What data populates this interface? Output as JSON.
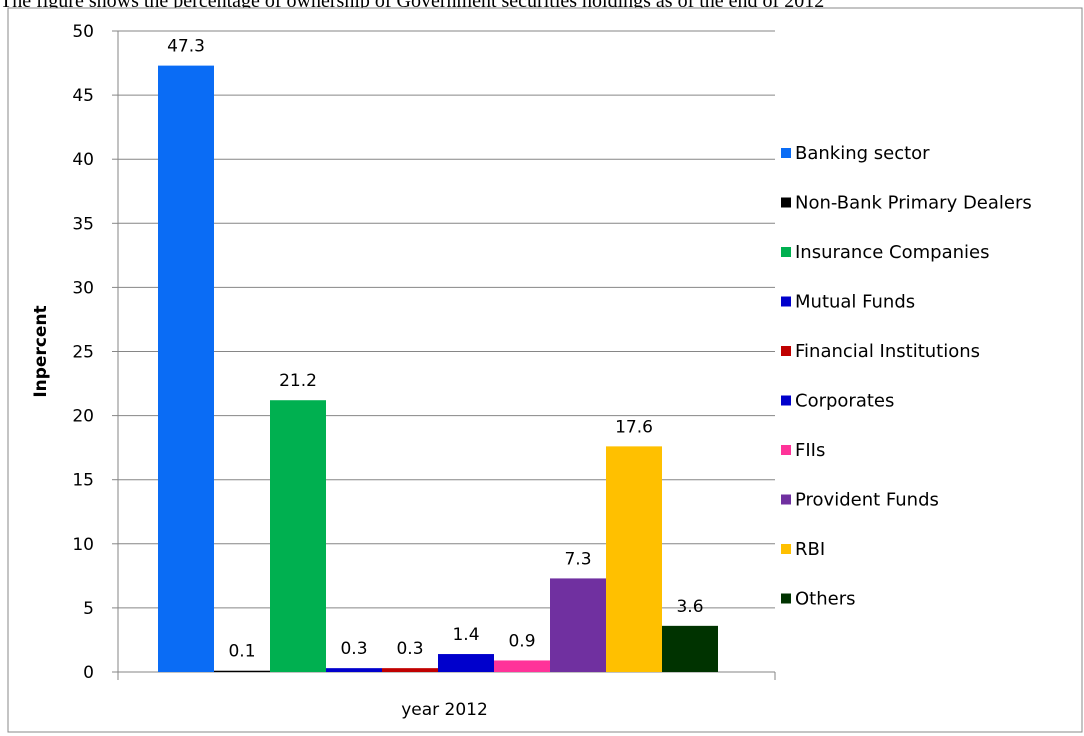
{
  "page": {
    "top_text": "The figure shows the percentage of ownership of Government securities holdings as of the end of 2012"
  },
  "chart_data": {
    "type": "bar",
    "categories": [
      "year 2012"
    ],
    "xlabel": "year 2012",
    "ylabel": "Inpercent",
    "ylim": [
      0,
      50
    ],
    "yticks": [
      0,
      5,
      10,
      15,
      20,
      25,
      30,
      35,
      40,
      45,
      50
    ],
    "grid": true,
    "legend_position": "right",
    "series": [
      {
        "name": "Banking sector",
        "values": [
          47.3
        ],
        "color": "#0a6cf5",
        "label": "47.3"
      },
      {
        "name": "Non-Bank Primary Dealers",
        "values": [
          0.1
        ],
        "color": "#000000",
        "label": "0.1"
      },
      {
        "name": "Insurance Companies",
        "values": [
          21.2
        ],
        "color": "#00b050",
        "label": "21.2"
      },
      {
        "name": "Mutual Funds",
        "values": [
          0.3
        ],
        "color": "#0000cc",
        "label": "0.3"
      },
      {
        "name": "Financial Institutions",
        "values": [
          0.3
        ],
        "color": "#c00000",
        "label": "0.3"
      },
      {
        "name": "Corporates",
        "values": [
          1.4
        ],
        "color": "#0000cc",
        "label": "1.4"
      },
      {
        "name": "FIIs",
        "values": [
          0.9
        ],
        "color": "#ff3399",
        "label": "0.9"
      },
      {
        "name": "Provident Funds",
        "values": [
          7.3
        ],
        "color": "#7030a0",
        "label": "7.3"
      },
      {
        "name": "RBI",
        "values": [
          17.6
        ],
        "color": "#ffc000",
        "label": "17.6"
      },
      {
        "name": "Others",
        "values": [
          3.6
        ],
        "color": "#003300",
        "label": "3.6"
      }
    ]
  }
}
